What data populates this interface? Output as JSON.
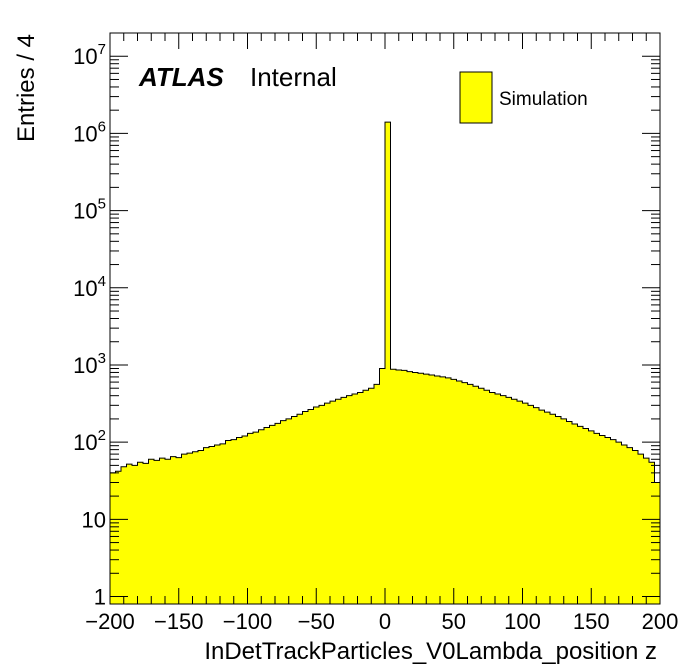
{
  "chart_data": {
    "type": "bar",
    "title": "",
    "xlabel": "InDetTrackParticles_V0Lambda_position z",
    "ylabel": "Entries / 4",
    "xlim": [
      -200,
      200
    ],
    "ylim": [
      0.8,
      20000000
    ],
    "yscale": "log",
    "bin_width": 4,
    "x_ticks": [
      -200,
      -150,
      -100,
      -50,
      0,
      50,
      100,
      150,
      200
    ],
    "x_tick_labels": [
      "−200",
      "−150",
      "−100",
      "−50",
      "0",
      "50",
      "100",
      "150",
      "200"
    ],
    "y_ticks": [
      {
        "value": 1,
        "base": "1",
        "exp": ""
      },
      {
        "value": 10,
        "base": "10",
        "exp": ""
      },
      {
        "value": 100,
        "base": "10",
        "exp": "2"
      },
      {
        "value": 1000,
        "base": "10",
        "exp": "3"
      },
      {
        "value": 10000,
        "base": "10",
        "exp": "4"
      },
      {
        "value": 100000,
        "base": "10",
        "exp": "5"
      },
      {
        "value": 1000000,
        "base": "10",
        "exp": "6"
      },
      {
        "value": 10000000,
        "base": "10",
        "exp": "7"
      }
    ],
    "bin_low_edges": [
      -200,
      -196,
      -192,
      -188,
      -184,
      -180,
      -176,
      -172,
      -168,
      -164,
      -160,
      -156,
      -152,
      -148,
      -144,
      -140,
      -136,
      -132,
      -128,
      -124,
      -120,
      -116,
      -112,
      -108,
      -104,
      -100,
      -96,
      -92,
      -88,
      -84,
      -80,
      -76,
      -72,
      -68,
      -64,
      -60,
      -56,
      -52,
      -48,
      -44,
      -40,
      -36,
      -32,
      -28,
      -24,
      -20,
      -16,
      -12,
      -8,
      -4,
      0,
      4,
      8,
      12,
      16,
      20,
      24,
      28,
      32,
      36,
      40,
      44,
      48,
      52,
      56,
      60,
      64,
      68,
      72,
      76,
      80,
      84,
      88,
      92,
      96,
      100,
      104,
      108,
      112,
      116,
      120,
      124,
      128,
      132,
      136,
      140,
      144,
      148,
      152,
      156,
      160,
      164,
      168,
      172,
      176,
      180,
      184,
      188,
      192,
      196
    ],
    "series": [
      {
        "values": [
          40,
          42,
          48,
          52,
          50,
          55,
          53,
          60,
          58,
          62,
          60,
          65,
          63,
          70,
          72,
          75,
          78,
          85,
          88,
          92,
          95,
          105,
          108,
          115,
          120,
          130,
          135,
          145,
          155,
          165,
          175,
          190,
          200,
          215,
          230,
          250,
          265,
          285,
          300,
          320,
          340,
          360,
          380,
          400,
          420,
          440,
          470,
          500,
          560,
          900,
          1400000,
          880,
          860,
          850,
          820,
          800,
          780,
          760,
          740,
          720,
          700,
          680,
          650,
          620,
          590,
          560,
          530,
          500,
          470,
          440,
          420,
          400,
          380,
          360,
          340,
          320,
          300,
          280,
          260,
          245,
          230,
          215,
          200,
          185,
          172,
          160,
          150,
          140,
          130,
          122,
          115,
          108,
          100,
          92,
          85,
          78,
          70,
          62,
          55,
          30
        ],
        "color": "#ffff00"
      }
    ],
    "annotations": {
      "atlas": "ATLAS",
      "status": "Internal"
    },
    "legend": {
      "entries": [
        "Simulation"
      ],
      "placement": "top-right"
    }
  }
}
